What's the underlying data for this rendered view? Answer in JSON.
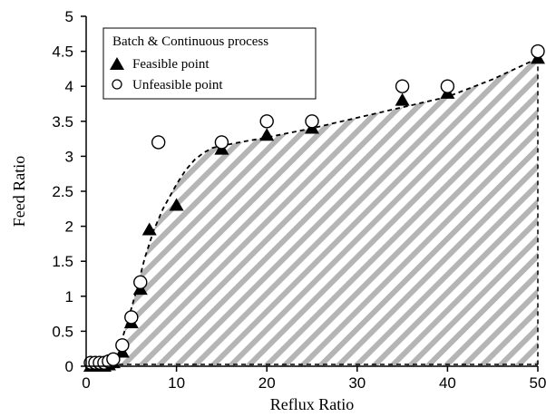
{
  "chart_data": {
    "type": "scatter",
    "xlabel": "Reflux Ratio",
    "ylabel": "Feed Ratio",
    "xlim": [
      0,
      50
    ],
    "ylim": [
      0,
      5
    ],
    "x_ticks": [
      0,
      10,
      20,
      30,
      40,
      50
    ],
    "y_ticks": [
      0,
      0.5,
      1,
      1.5,
      2,
      2.5,
      3,
      3.5,
      4,
      4.5,
      5
    ],
    "grid": false,
    "legend": {
      "placement": "top-left",
      "title": "Batch & Continuous process",
      "entries": [
        "Feasible point",
        "Unfeasible point"
      ]
    },
    "series": [
      {
        "name": "Feasible point",
        "marker": "filled-triangle",
        "x": [
          0.5,
          1,
          1.5,
          2,
          2.5,
          3,
          4,
          5,
          6,
          7,
          10,
          15,
          20,
          25,
          35,
          40,
          50
        ],
        "y": [
          0,
          0,
          0,
          0,
          0.02,
          0.05,
          0.2,
          0.62,
          1.1,
          1.95,
          2.3,
          3.1,
          3.3,
          3.4,
          3.8,
          3.9,
          4.4
        ]
      },
      {
        "name": "Unfeasible point",
        "marker": "open-circle",
        "x": [
          0.5,
          1,
          1.5,
          2,
          2.5,
          3,
          4,
          5,
          6,
          8,
          15,
          20,
          25,
          35,
          40,
          50
        ],
        "y": [
          0.05,
          0.05,
          0.05,
          0.05,
          0.07,
          0.1,
          0.3,
          0.7,
          1.2,
          3.2,
          3.2,
          3.5,
          3.5,
          4.0,
          4.0,
          4.5
        ]
      }
    ],
    "boundary_curve": {
      "style": "dashed",
      "x": [
        0,
        2.5,
        3.5,
        4.5,
        5.5,
        6.5,
        7.5,
        8.5,
        10,
        11,
        12,
        13,
        14,
        15,
        17,
        20,
        25,
        30,
        35,
        40,
        45,
        50
      ],
      "y": [
        0,
        0,
        0.2,
        0.6,
        1.05,
        1.55,
        1.95,
        2.25,
        2.6,
        2.8,
        2.95,
        3.05,
        3.12,
        3.15,
        3.2,
        3.27,
        3.4,
        3.55,
        3.7,
        3.85,
        4.1,
        4.4
      ]
    },
    "feasible_region": "hatched area under boundary curve",
    "colors": {
      "hatch": "#b5b5b5",
      "marker": "#000000",
      "axis": "#000000"
    }
  }
}
